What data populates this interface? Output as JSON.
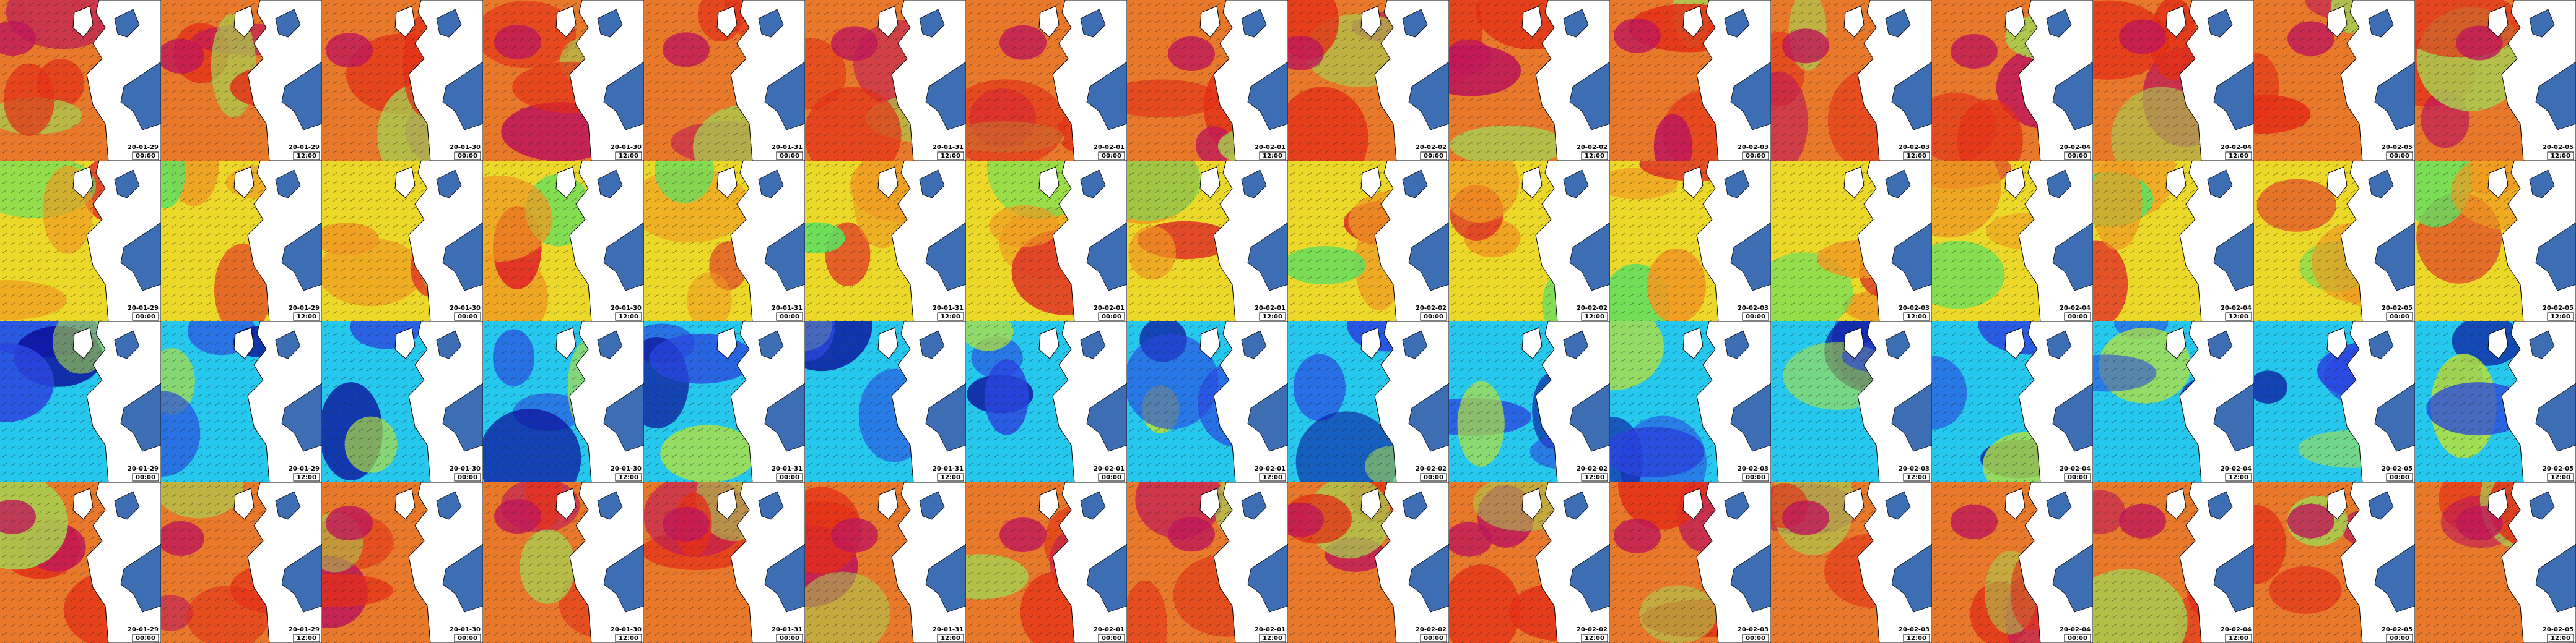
{
  "tiles": [
    {
      "date": "20-01-29",
      "time": "00:00"
    },
    {
      "date": "20-01-29",
      "time": "12:00"
    },
    {
      "date": "20-01-30",
      "time": "00:00"
    },
    {
      "date": "20-01-30",
      "time": "12:00"
    },
    {
      "date": "20-01-31",
      "time": "00:00"
    },
    {
      "date": "20-01-31",
      "time": "12:00"
    },
    {
      "date": "20-02-01",
      "time": "00:00"
    },
    {
      "date": "20-02-01",
      "time": "12:00"
    },
    {
      "date": "20-02-02",
      "time": "00:00"
    },
    {
      "date": "20-02-02",
      "time": "12:00"
    },
    {
      "date": "20-02-03",
      "time": "00:00"
    },
    {
      "date": "20-02-03",
      "time": "12:00"
    },
    {
      "date": "20-02-04",
      "time": "00:00"
    },
    {
      "date": "20-02-04",
      "time": "12:00"
    },
    {
      "date": "20-02-05",
      "time": "00:00"
    },
    {
      "date": "20-02-05",
      "time": "12:00"
    }
  ]
}
